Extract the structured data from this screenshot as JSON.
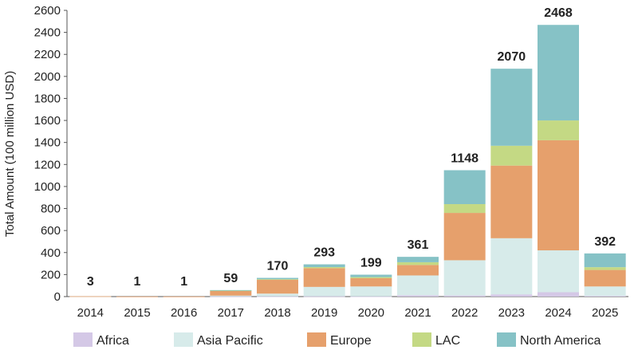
{
  "chart_data": {
    "type": "bar",
    "stacked": true,
    "ylabel": "Total Amount (100 million USD)",
    "ylim": [
      0,
      2600
    ],
    "yticks": [
      0,
      200,
      400,
      600,
      800,
      1000,
      1200,
      1400,
      1600,
      1800,
      2000,
      2200,
      2400,
      2600
    ],
    "grid": false,
    "legend_position": "bottom",
    "categories": [
      "2014",
      "2015",
      "2016",
      "2017",
      "2018",
      "2019",
      "2020",
      "2021",
      "2022",
      "2023",
      "2024",
      "2025"
    ],
    "totals": [
      "3",
      "1",
      "1",
      "59",
      "170",
      "293",
      "199",
      "361",
      "1148",
      "2070",
      "2468",
      "392"
    ],
    "series": [
      {
        "name": "Africa",
        "color": "#d4c8e6",
        "values": [
          0,
          0,
          0,
          1,
          2,
          3,
          2,
          12,
          10,
          20,
          40,
          6
        ]
      },
      {
        "name": "Asia Pacific",
        "color": "#d7ebea",
        "values": [
          2,
          0,
          0,
          8,
          25,
          85,
          90,
          180,
          320,
          510,
          380,
          86
        ]
      },
      {
        "name": "Europe",
        "color": "#e6a06c",
        "values": [
          1,
          1,
          1,
          45,
          125,
          170,
          75,
          95,
          430,
          660,
          1000,
          150
        ]
      },
      {
        "name": "LAC",
        "color": "#c4d984",
        "values": [
          0,
          0,
          0,
          2,
          6,
          10,
          10,
          25,
          80,
          180,
          180,
          25
        ]
      },
      {
        "name": "North America",
        "color": "#86c2c6",
        "values": [
          0,
          0,
          0,
          3,
          12,
          25,
          22,
          49,
          308,
          700,
          868,
          125
        ]
      }
    ]
  }
}
